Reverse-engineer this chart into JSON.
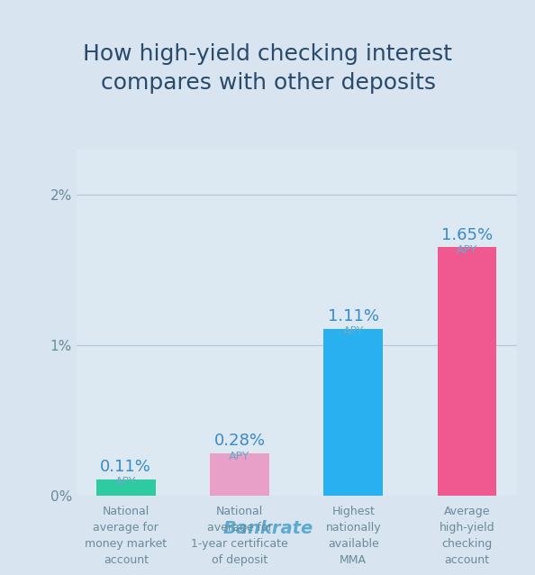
{
  "title": "How high-yield checking interest\ncompares with other deposits",
  "categories": [
    "National\naverage for\nmoney market\naccount",
    "National\naverage for\n1-year certificate\nof deposit",
    "Highest\nnationally\navailable\nMMA",
    "Average\nhigh-yield\nchecking\naccount"
  ],
  "values": [
    0.11,
    0.28,
    1.11,
    1.65
  ],
  "labels": [
    "0.11%",
    "0.28%",
    "1.11%",
    "1.65%"
  ],
  "bar_colors": [
    "#2ecaa0",
    "#e8a0c8",
    "#29b0f0",
    "#f05890"
  ],
  "title_color": "#2a4a6b",
  "label_color": "#3a8ac8",
  "apy_color": "#6aaac8",
  "xlabel_color": "#6a8a9a",
  "ytick_color": "#6a8a9a",
  "background_color": "#d8e4ef",
  "header_color": "#c8d4e3",
  "plot_bg_color": "#dce8f2",
  "footer_text": "Bankrate",
  "footer_color": "#5aabcf",
  "ylim": [
    0,
    2.3
  ],
  "yticks": [
    0,
    1,
    2
  ],
  "ytick_labels": [
    "0%",
    "1%",
    "2%"
  ],
  "grid_color": "#b0c8dc",
  "title_fontsize": 18,
  "label_fontsize": 13,
  "apy_fontsize": 9,
  "xlabel_fontsize": 9,
  "footer_fontsize": 14,
  "ytick_fontsize": 11
}
